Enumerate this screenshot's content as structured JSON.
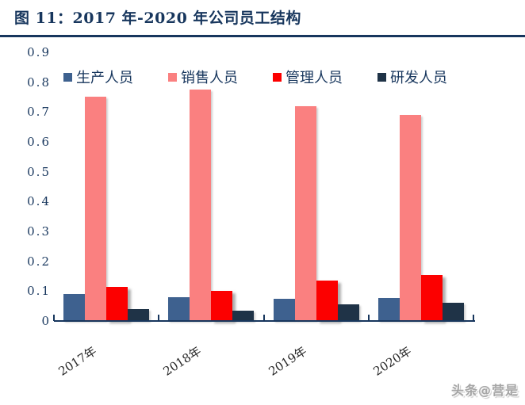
{
  "header": {
    "title": "图 11：2017 年-2020 年公司员工结构"
  },
  "chart_data": {
    "type": "bar",
    "title": "2017 年-2020 年公司员工结构",
    "categories": [
      "2017年",
      "2018年",
      "2019年",
      "2020年"
    ],
    "series": [
      {
        "name": "生产人员",
        "color": "#3e618f",
        "values": [
          0.09,
          0.08,
          0.075,
          0.078
        ]
      },
      {
        "name": "销售人员",
        "color": "#fa8080",
        "values": [
          0.75,
          0.775,
          0.72,
          0.69
        ]
      },
      {
        "name": "管理人员",
        "color": "#fc0000",
        "values": [
          0.115,
          0.1,
          0.135,
          0.155
        ]
      },
      {
        "name": "研发人员",
        "color": "#1f3347",
        "values": [
          0.04,
          0.035,
          0.055,
          0.06
        ]
      }
    ],
    "ylim": [
      0,
      0.9
    ],
    "y_ticks": [
      "0.9",
      "0.8",
      "0.7",
      "0.6",
      "0.5",
      "0.4",
      "0.3",
      "0.2",
      "0.1",
      "0"
    ],
    "xlabel": "",
    "ylabel": "",
    "grid": false,
    "legend_position": "top"
  },
  "watermark": "头条@营是",
  "colors": {
    "accent": "#17365d",
    "axis": "#17365d",
    "x_label": "#262626",
    "watermark": "#a6a6a6"
  }
}
